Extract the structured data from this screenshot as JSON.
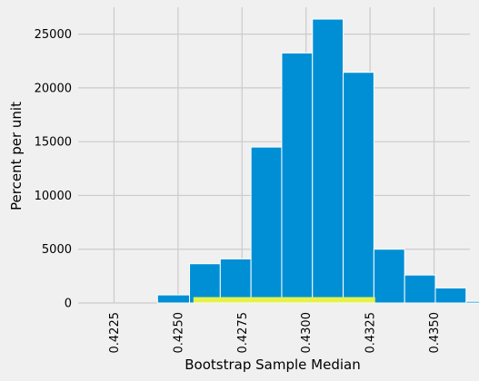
{
  "chart_data": {
    "type": "bar",
    "xlabel": "Bootstrap Sample Median",
    "ylabel": "Percent per unit",
    "xlim": [
      0.4211,
      0.4364
    ],
    "ylim": [
      0,
      27500
    ],
    "x_ticks": [
      "0.4225",
      "0.4250",
      "0.4275",
      "0.4300",
      "0.4325",
      "0.4350"
    ],
    "y_ticks": [
      "0",
      "5000",
      "10000",
      "15000",
      "20000",
      "25000"
    ],
    "grid": true,
    "bar_color": "#008fd5",
    "interval_color": "#e5f24c",
    "bins": [
      {
        "start": 0.4242,
        "end": 0.42545,
        "value": 750
      },
      {
        "start": 0.42545,
        "end": 0.42665,
        "value": 3650
      },
      {
        "start": 0.42665,
        "end": 0.42785,
        "value": 4100
      },
      {
        "start": 0.42785,
        "end": 0.42905,
        "value": 14500
      },
      {
        "start": 0.42905,
        "end": 0.43025,
        "value": 23250
      },
      {
        "start": 0.43025,
        "end": 0.43145,
        "value": 26400
      },
      {
        "start": 0.43145,
        "end": 0.43265,
        "value": 21450
      },
      {
        "start": 0.43265,
        "end": 0.43385,
        "value": 5000
      },
      {
        "start": 0.43385,
        "end": 0.43505,
        "value": 2600
      },
      {
        "start": 0.43505,
        "end": 0.43625,
        "value": 1400
      },
      {
        "start": 0.43625,
        "end": 0.43745,
        "value": 150
      }
    ],
    "interval": {
      "start": 0.4256,
      "end": 0.4327
    }
  }
}
